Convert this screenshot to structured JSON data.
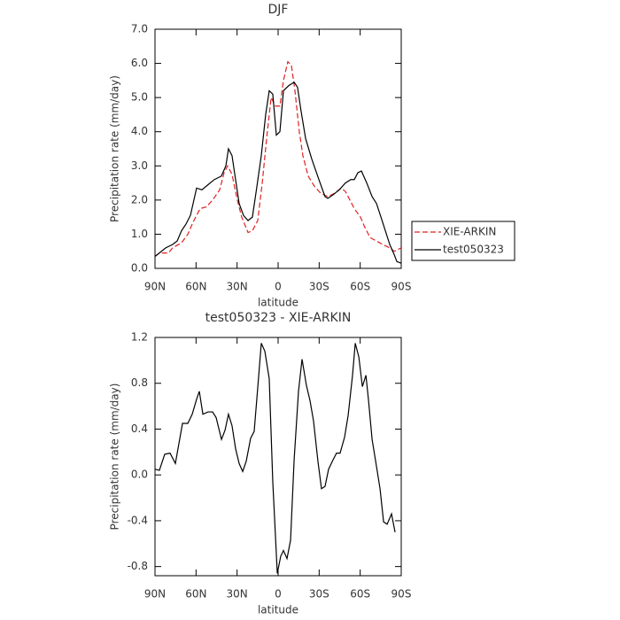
{
  "chart_data": [
    {
      "type": "line",
      "title": "DJF",
      "xlabel": "latitude",
      "ylabel": "Precipitation rate (mm/day)",
      "xlim": [
        90,
        -90
      ],
      "xticks": [
        {
          "value": 90,
          "label": "90N"
        },
        {
          "value": 60,
          "label": "60N"
        },
        {
          "value": 30,
          "label": "30N"
        },
        0,
        {
          "value": -30,
          "label": "30S"
        },
        {
          "value": -60,
          "label": "60S"
        },
        {
          "value": -90,
          "label": "90S"
        }
      ],
      "ylim": [
        0,
        7
      ],
      "yticks": [
        {
          "value": 0,
          "label": "0.0"
        },
        {
          "value": 1,
          "label": "1.0"
        },
        {
          "value": 2,
          "label": "2.0"
        },
        {
          "value": 3,
          "label": "3.0"
        },
        {
          "value": 4,
          "label": "4.0"
        },
        {
          "value": 5,
          "label": "5.0"
        },
        {
          "value": 6,
          "label": "6.0"
        },
        {
          "value": 7,
          "label": "7.0"
        }
      ],
      "legend": "right",
      "series": [
        {
          "name": "XIE-ARKIN",
          "color": "#e02020",
          "linestyle": "dashed",
          "x": [
            90,
            86.8,
            80.3,
            77.1,
            70.6,
            66.0,
            62.2,
            57.0,
            52.4,
            47.9,
            42.7,
            39.5,
            36.9,
            33.7,
            29.8,
            26.6,
            22.0,
            18.8,
            14.9,
            11.6,
            8.4,
            5.1,
            1.9,
            -1.3,
            -3.9,
            -7.1,
            -9.7,
            -12.3,
            -15.5,
            -18.1,
            -22.0,
            -26.6,
            -31.1,
            -36.3,
            -41.4,
            -46.0,
            -49.2,
            -52.5,
            -55.7,
            -60.2,
            -63.4,
            -67.3,
            -71.9,
            -76.4,
            -81.6,
            -84.9,
            -90
          ],
          "values": [
            0.35,
            0.45,
            0.45,
            0.6,
            0.75,
            1.0,
            1.35,
            1.75,
            1.8,
            2.0,
            2.3,
            2.8,
            3.0,
            2.75,
            2.0,
            1.5,
            1.05,
            1.1,
            1.4,
            2.5,
            3.8,
            5.0,
            4.75,
            4.75,
            5.5,
            6.05,
            5.95,
            5.2,
            4.0,
            3.3,
            2.7,
            2.4,
            2.2,
            2.1,
            2.2,
            2.35,
            2.25,
            2.0,
            1.75,
            1.5,
            1.2,
            0.9,
            0.8,
            0.7,
            0.6,
            0.5,
            0.6
          ]
        },
        {
          "name": "test050323",
          "color": "#000000",
          "linestyle": "solid",
          "x": [
            90,
            86.8,
            82.2,
            77.1,
            73.8,
            70.6,
            67.3,
            64.1,
            59.6,
            55.7,
            51.2,
            46.6,
            41.5,
            38.2,
            36.3,
            33.7,
            31.1,
            28.5,
            25.3,
            22.0,
            18.8,
            15.5,
            12.3,
            9.1,
            6.5,
            3.9,
            1.3,
            -1.3,
            -3.9,
            -7.8,
            -11.7,
            -14.2,
            -16.8,
            -20.1,
            -24.6,
            -29.8,
            -34.3,
            -36.3,
            -40.1,
            -44.7,
            -49.2,
            -53.1,
            -55.7,
            -58.3,
            -60.9,
            -64.8,
            -68.7,
            -71.9,
            -75.2,
            -78.4,
            -81.6,
            -84.9,
            -86.8,
            -90
          ],
          "values": [
            0.35,
            0.45,
            0.6,
            0.7,
            0.8,
            1.1,
            1.3,
            1.55,
            2.35,
            2.3,
            2.45,
            2.6,
            2.7,
            3.0,
            3.5,
            3.3,
            2.6,
            1.9,
            1.55,
            1.4,
            1.5,
            2.4,
            3.3,
            4.5,
            5.2,
            5.1,
            3.9,
            4.0,
            5.2,
            5.35,
            5.45,
            5.3,
            4.6,
            3.8,
            3.2,
            2.6,
            2.1,
            2.05,
            2.15,
            2.3,
            2.5,
            2.6,
            2.6,
            2.8,
            2.85,
            2.5,
            2.1,
            1.9,
            1.5,
            1.1,
            0.7,
            0.4,
            0.2,
            0.15
          ]
        }
      ]
    },
    {
      "type": "line",
      "title": "test050323 - XIE-ARKIN",
      "xlabel": "latitude",
      "ylabel": "Precipitation rate (mm/day)",
      "xlim": [
        90,
        -90
      ],
      "xticks": [
        {
          "value": 90,
          "label": "90N"
        },
        {
          "value": 60,
          "label": "60N"
        },
        {
          "value": 30,
          "label": "30N"
        },
        0,
        {
          "value": -30,
          "label": "30S"
        },
        {
          "value": -60,
          "label": "60S"
        },
        {
          "value": -90,
          "label": "90S"
        }
      ],
      "ylim": [
        -0.88,
        1.2
      ],
      "yticks": [
        -0.8,
        -0.4,
        {
          "value": 0,
          "label": "0.0"
        },
        0.4,
        0.8,
        1.2
      ],
      "series": [
        {
          "color": "#000000",
          "linestyle": "solid",
          "x": [
            90,
            86.8,
            82.9,
            79.0,
            75.1,
            69.9,
            66.0,
            62.8,
            59.6,
            57.6,
            55.0,
            51.2,
            47.9,
            45.3,
            41.4,
            38.8,
            36.3,
            33.7,
            31.1,
            28.5,
            25.9,
            23.3,
            20.1,
            17.5,
            14.9,
            12.3,
            9.7,
            6.5,
            3.9,
            0.6,
            -1.9,
            -3.9,
            -6.5,
            -9.1,
            -11.7,
            -14.9,
            -17.5,
            -20.7,
            -23.3,
            -25.9,
            -29.1,
            -31.7,
            -34.3,
            -36.9,
            -40.1,
            -42.7,
            -45.3,
            -48.6,
            -51.2,
            -54.4,
            -56.4,
            -59.0,
            -61.6,
            -64.2,
            -66.1,
            -68.7,
            -71.3,
            -74.5,
            -77.1,
            -79.7,
            -82.9,
            -85.5
          ],
          "values": [
            0.05,
            0.04,
            0.18,
            0.19,
            0.1,
            0.45,
            0.45,
            0.53,
            0.66,
            0.73,
            0.53,
            0.55,
            0.55,
            0.5,
            0.31,
            0.39,
            0.53,
            0.43,
            0.23,
            0.1,
            0.03,
            0.12,
            0.32,
            0.38,
            0.76,
            1.15,
            1.08,
            0.84,
            -0.06,
            -0.86,
            -0.71,
            -0.66,
            -0.73,
            -0.57,
            0.13,
            0.73,
            1.01,
            0.78,
            0.65,
            0.47,
            0.12,
            -0.12,
            -0.1,
            0.05,
            0.13,
            0.19,
            0.19,
            0.33,
            0.52,
            0.87,
            1.15,
            1.03,
            0.77,
            0.87,
            0.65,
            0.31,
            0.12,
            -0.12,
            -0.41,
            -0.43,
            -0.34,
            -0.5
          ]
        }
      ]
    }
  ]
}
